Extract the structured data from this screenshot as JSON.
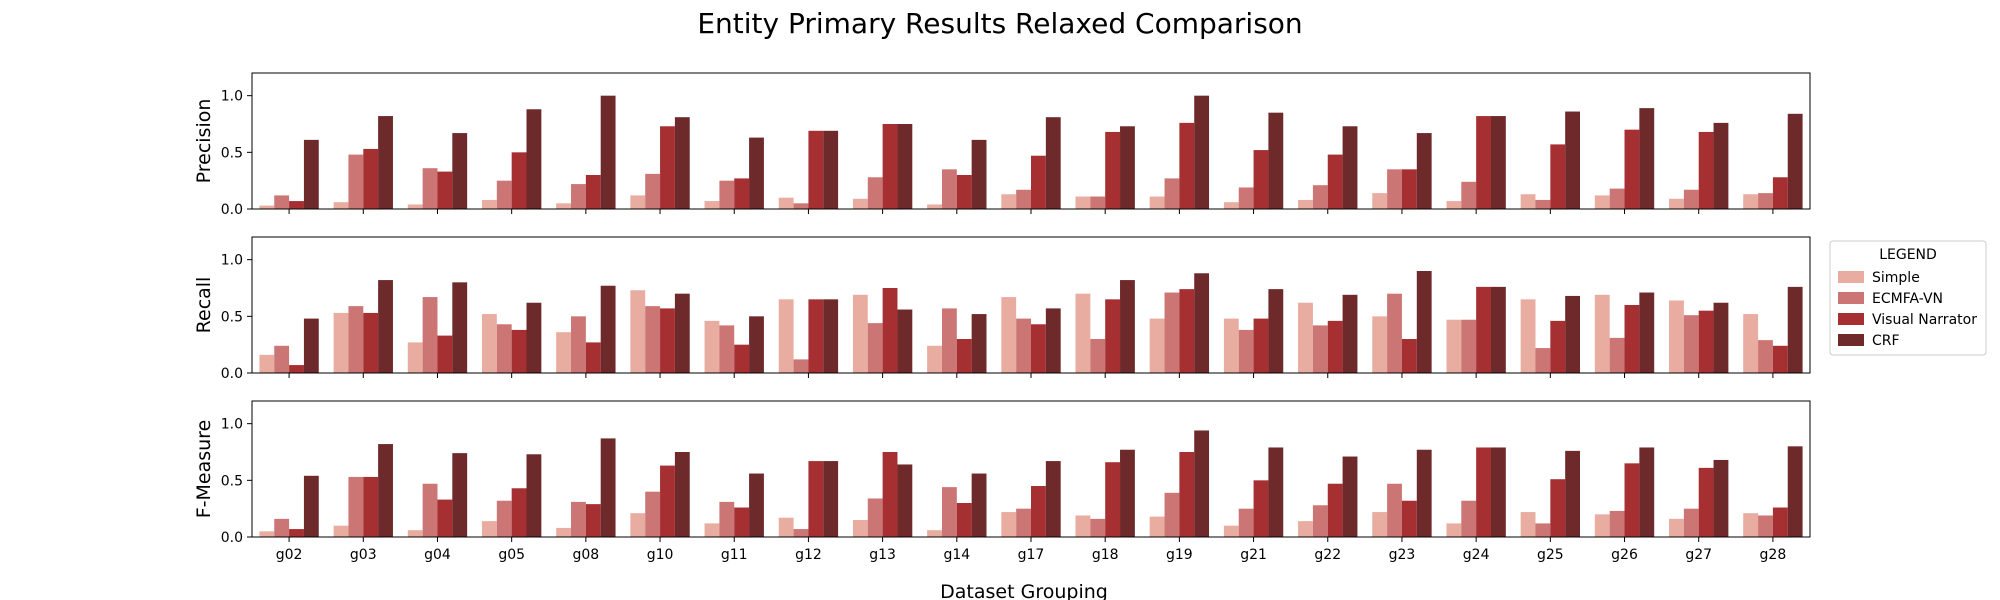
{
  "chart_data": {
    "type": "bar",
    "title": "Entity Primary Results Relaxed Comparison",
    "xlabel": "Dataset Grouping",
    "categories": [
      "g02",
      "g03",
      "g04",
      "g05",
      "g08",
      "g10",
      "g11",
      "g12",
      "g13",
      "g14",
      "g17",
      "g18",
      "g19",
      "g21",
      "g22",
      "g23",
      "g24",
      "g25",
      "g26",
      "g27",
      "g28"
    ],
    "ylim": [
      0,
      1.2
    ],
    "yticks": [
      "0.0",
      "0.5",
      "1.0"
    ],
    "legend": {
      "title": "LEGEND",
      "placement": "right",
      "entries": [
        "Simple",
        "ECMFA-VN",
        "Visual Narrator",
        "CRF"
      ]
    },
    "colors": [
      "#e8aca0",
      "#cc7575",
      "#a62f32",
      "#6e2a2b"
    ],
    "panels": [
      {
        "ylabel": "Precision",
        "series": [
          {
            "name": "Simple",
            "values": [
              0.03,
              0.06,
              0.04,
              0.08,
              0.05,
              0.12,
              0.07,
              0.1,
              0.09,
              0.04,
              0.13,
              0.11,
              0.11,
              0.06,
              0.08,
              0.14,
              0.07,
              0.13,
              0.12,
              0.09,
              0.13
            ]
          },
          {
            "name": "ECMFA-VN",
            "values": [
              0.12,
              0.48,
              0.36,
              0.25,
              0.22,
              0.31,
              0.25,
              0.05,
              0.28,
              0.35,
              0.17,
              0.11,
              0.27,
              0.19,
              0.21,
              0.35,
              0.24,
              0.08,
              0.18,
              0.17,
              0.14
            ]
          },
          {
            "name": "Visual Narrator",
            "values": [
              0.07,
              0.53,
              0.33,
              0.5,
              0.3,
              0.73,
              0.27,
              0.69,
              0.75,
              0.3,
              0.47,
              0.68,
              0.76,
              0.52,
              0.48,
              0.35,
              0.82,
              0.57,
              0.7,
              0.68,
              0.28
            ]
          },
          {
            "name": "CRF",
            "values": [
              0.61,
              0.82,
              0.67,
              0.88,
              1.0,
              0.81,
              0.63,
              0.69,
              0.75,
              0.61,
              0.81,
              0.73,
              1.0,
              0.85,
              0.73,
              0.67,
              0.82,
              0.86,
              0.89,
              0.76,
              0.84
            ]
          }
        ]
      },
      {
        "ylabel": "Recall",
        "series": [
          {
            "name": "Simple",
            "values": [
              0.16,
              0.53,
              0.27,
              0.52,
              0.36,
              0.73,
              0.46,
              0.65,
              0.69,
              0.24,
              0.67,
              0.7,
              0.48,
              0.48,
              0.62,
              0.5,
              0.47,
              0.65,
              0.69,
              0.64,
              0.52
            ]
          },
          {
            "name": "ECMFA-VN",
            "values": [
              0.24,
              0.59,
              0.67,
              0.43,
              0.5,
              0.59,
              0.42,
              0.12,
              0.44,
              0.57,
              0.48,
              0.3,
              0.71,
              0.38,
              0.42,
              0.7,
              0.47,
              0.22,
              0.31,
              0.51,
              0.29
            ]
          },
          {
            "name": "Visual Narrator",
            "values": [
              0.07,
              0.53,
              0.33,
              0.38,
              0.27,
              0.57,
              0.25,
              0.65,
              0.75,
              0.3,
              0.43,
              0.65,
              0.74,
              0.48,
              0.46,
              0.3,
              0.76,
              0.46,
              0.6,
              0.55,
              0.24
            ]
          },
          {
            "name": "CRF",
            "values": [
              0.48,
              0.82,
              0.8,
              0.62,
              0.77,
              0.7,
              0.5,
              0.65,
              0.56,
              0.52,
              0.57,
              0.82,
              0.88,
              0.74,
              0.69,
              0.9,
              0.76,
              0.68,
              0.71,
              0.62,
              0.76
            ]
          }
        ]
      },
      {
        "ylabel": "F-Measure",
        "series": [
          {
            "name": "Simple",
            "values": [
              0.05,
              0.1,
              0.06,
              0.14,
              0.08,
              0.21,
              0.12,
              0.17,
              0.15,
              0.06,
              0.22,
              0.19,
              0.18,
              0.1,
              0.14,
              0.22,
              0.12,
              0.22,
              0.2,
              0.16,
              0.21
            ]
          },
          {
            "name": "ECMFA-VN",
            "values": [
              0.16,
              0.53,
              0.47,
              0.32,
              0.31,
              0.4,
              0.31,
              0.07,
              0.34,
              0.44,
              0.25,
              0.16,
              0.39,
              0.25,
              0.28,
              0.47,
              0.32,
              0.12,
              0.23,
              0.25,
              0.19
            ]
          },
          {
            "name": "Visual Narrator",
            "values": [
              0.07,
              0.53,
              0.33,
              0.43,
              0.29,
              0.63,
              0.26,
              0.67,
              0.75,
              0.3,
              0.45,
              0.66,
              0.75,
              0.5,
              0.47,
              0.32,
              0.79,
              0.51,
              0.65,
              0.61,
              0.26
            ]
          },
          {
            "name": "CRF",
            "values": [
              0.54,
              0.82,
              0.74,
              0.73,
              0.87,
              0.75,
              0.56,
              0.67,
              0.64,
              0.56,
              0.67,
              0.77,
              0.94,
              0.79,
              0.71,
              0.77,
              0.79,
              0.76,
              0.79,
              0.68,
              0.8
            ]
          }
        ]
      }
    ]
  }
}
